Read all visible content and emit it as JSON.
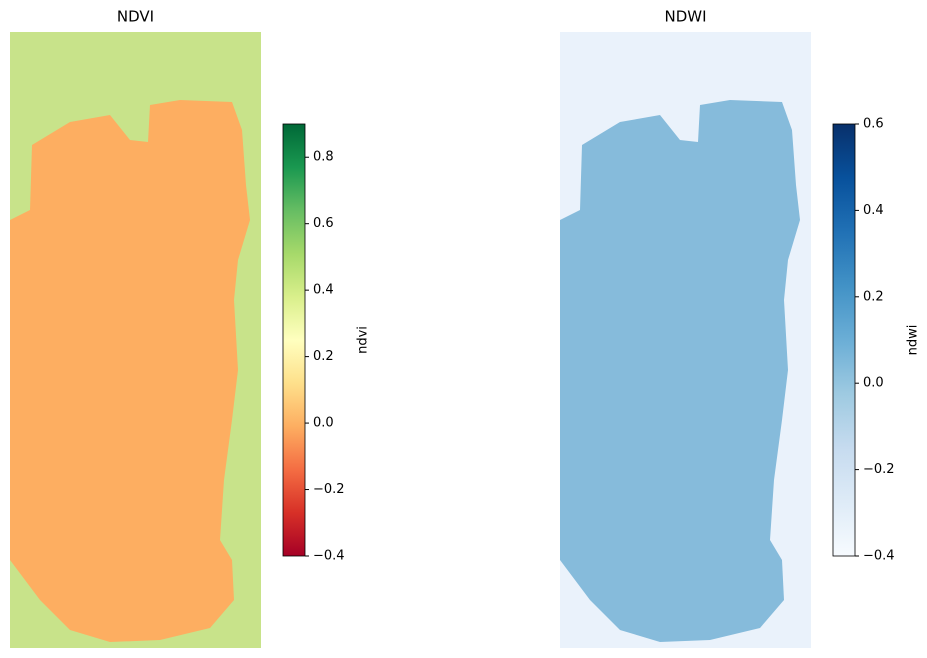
{
  "chart_data": [
    {
      "type": "image",
      "title": "NDVI",
      "land_color": "#c8e38a",
      "water_color": "#fdae61",
      "colorbar": {
        "label": "ndvi",
        "lim": [
          -0.4,
          0.9
        ],
        "colors": [
          "#a50026",
          "#d73027",
          "#f46d43",
          "#fdae61",
          "#fee08b",
          "#ffffbf",
          "#d9ef8b",
          "#a6d96a",
          "#66bd63",
          "#1a9850",
          "#006837"
        ],
        "ticks": [
          {
            "value": -0.4,
            "label": "−0.4"
          },
          {
            "value": -0.2,
            "label": "−0.2"
          },
          {
            "value": 0,
            "label": "0.0"
          },
          0.2,
          0.4,
          0.6,
          0.8
        ]
      }
    },
    {
      "type": "image",
      "title": "NDWI",
      "land_color": "#eaf2fb",
      "water_color": "#86bbdb",
      "colorbar": {
        "label": "ndwi",
        "lim": [
          -0.4,
          0.6
        ],
        "colors": [
          "#f7fbff",
          "#deebf7",
          "#c6dbef",
          "#9ecae1",
          "#6baed6",
          "#4292c6",
          "#2171b5",
          "#08519c",
          "#08306b"
        ],
        "ticks": [
          {
            "value": -0.4,
            "label": "−0.4"
          },
          {
            "value": -0.2,
            "label": "−0.2"
          },
          {
            "value": 0,
            "label": "0.0"
          },
          0.2,
          0.4,
          0.6
        ]
      }
    }
  ]
}
